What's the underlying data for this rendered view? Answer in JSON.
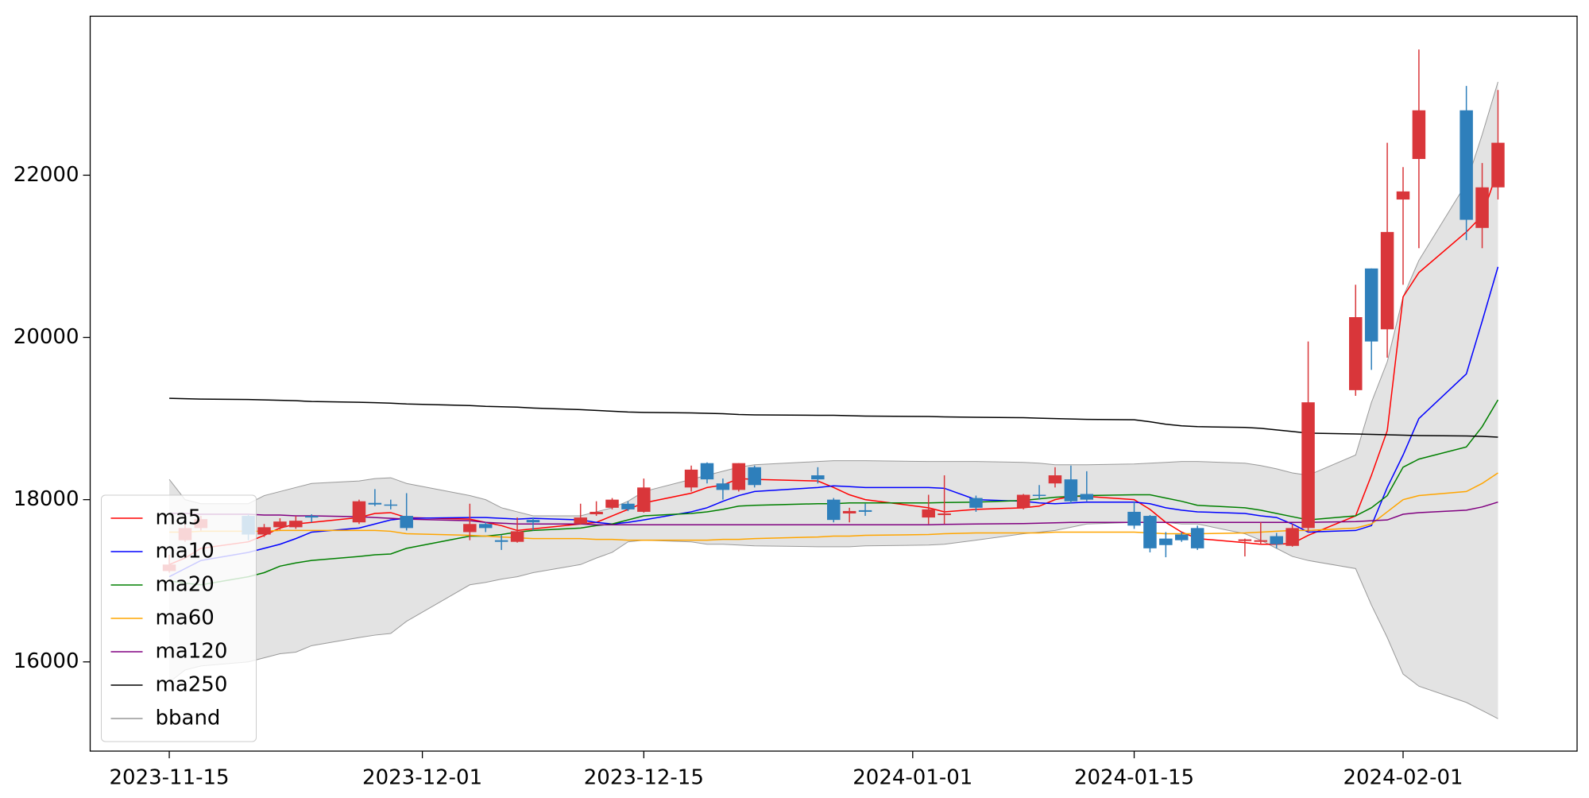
{
  "chart_data": {
    "type": "candlestick",
    "x": [
      "2023-11-15",
      "2023-11-16",
      "2023-11-17",
      "2023-11-20",
      "2023-11-21",
      "2023-11-22",
      "2023-11-23",
      "2023-11-24",
      "2023-11-27",
      "2023-11-28",
      "2023-11-29",
      "2023-11-30",
      "2023-12-04",
      "2023-12-05",
      "2023-12-06",
      "2023-12-07",
      "2023-12-08",
      "2023-12-11",
      "2023-12-12",
      "2023-12-13",
      "2023-12-14",
      "2023-12-15",
      "2023-12-18",
      "2023-12-19",
      "2023-12-20",
      "2023-12-21",
      "2023-12-22",
      "2023-12-26",
      "2023-12-27",
      "2023-12-28",
      "2023-12-29",
      "2024-01-02",
      "2024-01-03",
      "2024-01-05",
      "2024-01-08",
      "2024-01-09",
      "2024-01-10",
      "2024-01-11",
      "2024-01-12",
      "2024-01-15",
      "2024-01-16",
      "2024-01-17",
      "2024-01-18",
      "2024-01-19",
      "2024-01-22",
      "2024-01-23",
      "2024-01-24",
      "2024-01-25",
      "2024-01-26",
      "2024-01-29",
      "2024-01-30",
      "2024-01-31",
      "2024-02-01",
      "2024-02-02",
      "2024-02-05",
      "2024-02-06",
      "2024-02-07"
    ],
    "candles": {
      "up_color": "#d9363a",
      "down_color": "#2e7fbb",
      "open": [
        17120,
        17500,
        17650,
        17800,
        17570,
        17660,
        17660,
        17800,
        17720,
        17960,
        17940,
        17800,
        17600,
        17700,
        17500,
        17480,
        17750,
        17700,
        17820,
        17900,
        17950,
        17850,
        18150,
        18450,
        18200,
        18120,
        18400,
        18300,
        18000,
        17830,
        17870,
        17780,
        17810,
        18020,
        17900,
        18060,
        18200,
        18250,
        18070,
        17850,
        17800,
        17520,
        17570,
        17650,
        17490,
        17480,
        17550,
        17430,
        17650,
        19350,
        20850,
        20100,
        21700,
        22200,
        22800,
        21350,
        21850
      ],
      "high": [
        17320,
        17700,
        17800,
        17820,
        17700,
        17770,
        17800,
        17820,
        18000,
        18130,
        18000,
        18080,
        17950,
        17720,
        17560,
        17780,
        17780,
        17950,
        17980,
        18020,
        17980,
        18260,
        18420,
        18460,
        18260,
        18450,
        18420,
        18400,
        18020,
        17900,
        17950,
        18060,
        18300,
        18050,
        18070,
        18180,
        18400,
        18420,
        18350,
        17980,
        17810,
        17600,
        17600,
        17680,
        17520,
        17720,
        17590,
        17700,
        19950,
        20650,
        20850,
        22400,
        22100,
        23550,
        23100,
        22150,
        23050
      ],
      "low": [
        17100,
        17480,
        17620,
        17500,
        17540,
        17630,
        17640,
        17720,
        17700,
        17920,
        17880,
        17620,
        17500,
        17600,
        17380,
        17470,
        17620,
        17690,
        17800,
        17880,
        17860,
        17840,
        18100,
        18200,
        18000,
        18100,
        18150,
        18200,
        17720,
        17720,
        17800,
        17700,
        17700,
        17850,
        17880,
        18000,
        18150,
        17950,
        17980,
        17640,
        17350,
        17290,
        17480,
        17380,
        17300,
        17450,
        17400,
        17420,
        17600,
        19280,
        19600,
        19750,
        20650,
        21100,
        21200,
        21100,
        21700
      ],
      "close": [
        17200,
        17650,
        17760,
        17570,
        17660,
        17730,
        17740,
        17780,
        17980,
        17940,
        17930,
        17650,
        17700,
        17650,
        17480,
        17610,
        17720,
        17780,
        17850,
        18000,
        17880,
        18150,
        18370,
        18250,
        18120,
        18450,
        18180,
        18250,
        17750,
        17860,
        17850,
        17880,
        17830,
        17900,
        18060,
        18050,
        18300,
        17980,
        18000,
        17680,
        17400,
        17440,
        17500,
        17400,
        17510,
        17500,
        17450,
        17650,
        19200,
        20250,
        19950,
        21300,
        21800,
        22800,
        21450,
        21850,
        22400
      ]
    },
    "series": [
      {
        "name": "ma5",
        "color": "#ff0000",
        "values": [
          17200,
          17280,
          17400,
          17480,
          17560,
          17650,
          17700,
          17720,
          17780,
          17830,
          17840,
          17780,
          17760,
          17720,
          17680,
          17620,
          17640,
          17700,
          17720,
          17800,
          17880,
          17960,
          18080,
          18150,
          18180,
          18260,
          18250,
          18230,
          18150,
          18060,
          18000,
          17900,
          17850,
          17880,
          17900,
          17920,
          18000,
          18040,
          18040,
          18000,
          17880,
          17720,
          17600,
          17520,
          17470,
          17450,
          17450,
          17460,
          17560,
          17800,
          18300,
          18850,
          20500,
          20800,
          21300,
          21500,
          22070
        ]
      },
      {
        "name": "ma10",
        "color": "#0000ff",
        "values": [
          17050,
          17150,
          17250,
          17350,
          17400,
          17450,
          17520,
          17600,
          17650,
          17700,
          17750,
          17770,
          17780,
          17780,
          17770,
          17760,
          17770,
          17750,
          17720,
          17700,
          17720,
          17750,
          17850,
          17900,
          17980,
          18050,
          18100,
          18150,
          18170,
          18160,
          18150,
          18150,
          18140,
          18000,
          17980,
          17960,
          17950,
          17960,
          17970,
          17970,
          17950,
          17900,
          17870,
          17850,
          17830,
          17800,
          17780,
          17700,
          17600,
          17620,
          17680,
          18150,
          18550,
          19000,
          19550,
          20200,
          20870
        ]
      },
      {
        "name": "ma20",
        "color": "#008000",
        "values": [
          17000,
          16970,
          16950,
          17050,
          17100,
          17180,
          17220,
          17250,
          17300,
          17320,
          17330,
          17400,
          17550,
          17550,
          17570,
          17600,
          17620,
          17650,
          17680,
          17700,
          17750,
          17800,
          17830,
          17850,
          17880,
          17920,
          17930,
          17950,
          17950,
          17960,
          17960,
          17960,
          17965,
          17970,
          17990,
          18010,
          18030,
          18040,
          18050,
          18060,
          18060,
          18020,
          17980,
          17930,
          17900,
          17870,
          17830,
          17790,
          17750,
          17800,
          17900,
          18050,
          18400,
          18500,
          18650,
          18900,
          19230
        ]
      },
      {
        "name": "ma60",
        "color": "#ffa500",
        "values": [
          17600,
          17600,
          17610,
          17610,
          17610,
          17620,
          17620,
          17620,
          17620,
          17620,
          17610,
          17580,
          17560,
          17550,
          17540,
          17530,
          17520,
          17520,
          17510,
          17510,
          17500,
          17500,
          17500,
          17500,
          17510,
          17510,
          17520,
          17540,
          17550,
          17550,
          17560,
          17570,
          17580,
          17590,
          17590,
          17590,
          17600,
          17600,
          17600,
          17600,
          17590,
          17580,
          17580,
          17580,
          17590,
          17600,
          17610,
          17620,
          17620,
          17650,
          17700,
          17850,
          18000,
          18050,
          18100,
          18200,
          18330
        ]
      },
      {
        "name": "ma120",
        "color": "#800080",
        "values": [
          17830,
          17830,
          17820,
          17820,
          17810,
          17810,
          17800,
          17800,
          17790,
          17780,
          17770,
          17760,
          17740,
          17720,
          17710,
          17700,
          17700,
          17700,
          17690,
          17690,
          17690,
          17690,
          17690,
          17690,
          17690,
          17690,
          17690,
          17690,
          17690,
          17690,
          17690,
          17690,
          17695,
          17700,
          17705,
          17710,
          17715,
          17720,
          17720,
          17720,
          17720,
          17720,
          17720,
          17720,
          17720,
          17720,
          17720,
          17720,
          17720,
          17730,
          17740,
          17750,
          17820,
          17840,
          17870,
          17910,
          17970
        ]
      },
      {
        "name": "ma250",
        "color": "#000000",
        "values": [
          19250,
          19245,
          19240,
          19235,
          19230,
          19225,
          19220,
          19210,
          19200,
          19195,
          19190,
          19180,
          19160,
          19150,
          19145,
          19140,
          19130,
          19110,
          19100,
          19090,
          19080,
          19075,
          19070,
          19065,
          19060,
          19050,
          19045,
          19040,
          19040,
          19035,
          19030,
          19025,
          19020,
          19015,
          19010,
          19005,
          19000,
          18995,
          18990,
          18985,
          18960,
          18930,
          18910,
          18900,
          18890,
          18880,
          18860,
          18840,
          18820,
          18810,
          18805,
          18800,
          18795,
          18790,
          18785,
          18780,
          18770
        ]
      }
    ],
    "bband": {
      "name": "bband",
      "color": "#999999",
      "fill": "#e3e3e3",
      "upper": [
        18250,
        18000,
        17950,
        17950,
        18050,
        18100,
        18150,
        18200,
        18230,
        18260,
        18270,
        18200,
        18050,
        18000,
        17900,
        17850,
        17800,
        17800,
        17850,
        17900,
        17980,
        18100,
        18250,
        18300,
        18350,
        18400,
        18430,
        18470,
        18480,
        18480,
        18480,
        18470,
        18470,
        18470,
        18460,
        18450,
        18430,
        18430,
        18430,
        18440,
        18450,
        18460,
        18470,
        18470,
        18450,
        18420,
        18380,
        18330,
        18300,
        18550,
        19200,
        19700,
        20500,
        20950,
        21900,
        22500,
        23150
      ],
      "lower": [
        15750,
        15900,
        15950,
        16000,
        16050,
        16100,
        16120,
        16200,
        16300,
        16330,
        16350,
        16500,
        16950,
        16980,
        17020,
        17050,
        17100,
        17200,
        17280,
        17350,
        17480,
        17500,
        17480,
        17450,
        17450,
        17440,
        17430,
        17420,
        17420,
        17420,
        17430,
        17440,
        17450,
        17500,
        17580,
        17600,
        17620,
        17660,
        17700,
        17720,
        17720,
        17720,
        17700,
        17700,
        17580,
        17500,
        17400,
        17300,
        17250,
        17150,
        16700,
        16300,
        15850,
        15700,
        15500,
        15400,
        15300
      ]
    },
    "xlim": [
      "2023-11-10",
      "2024-02-12"
    ],
    "xticks": [
      "2023-11-15",
      "2023-12-01",
      "2023-12-15",
      "2024-01-01",
      "2024-01-15",
      "2024-02-01"
    ],
    "ylim": [
      14900,
      23960
    ],
    "yticks": [
      16000,
      18000,
      20000,
      22000
    ],
    "legend": "lower left"
  }
}
